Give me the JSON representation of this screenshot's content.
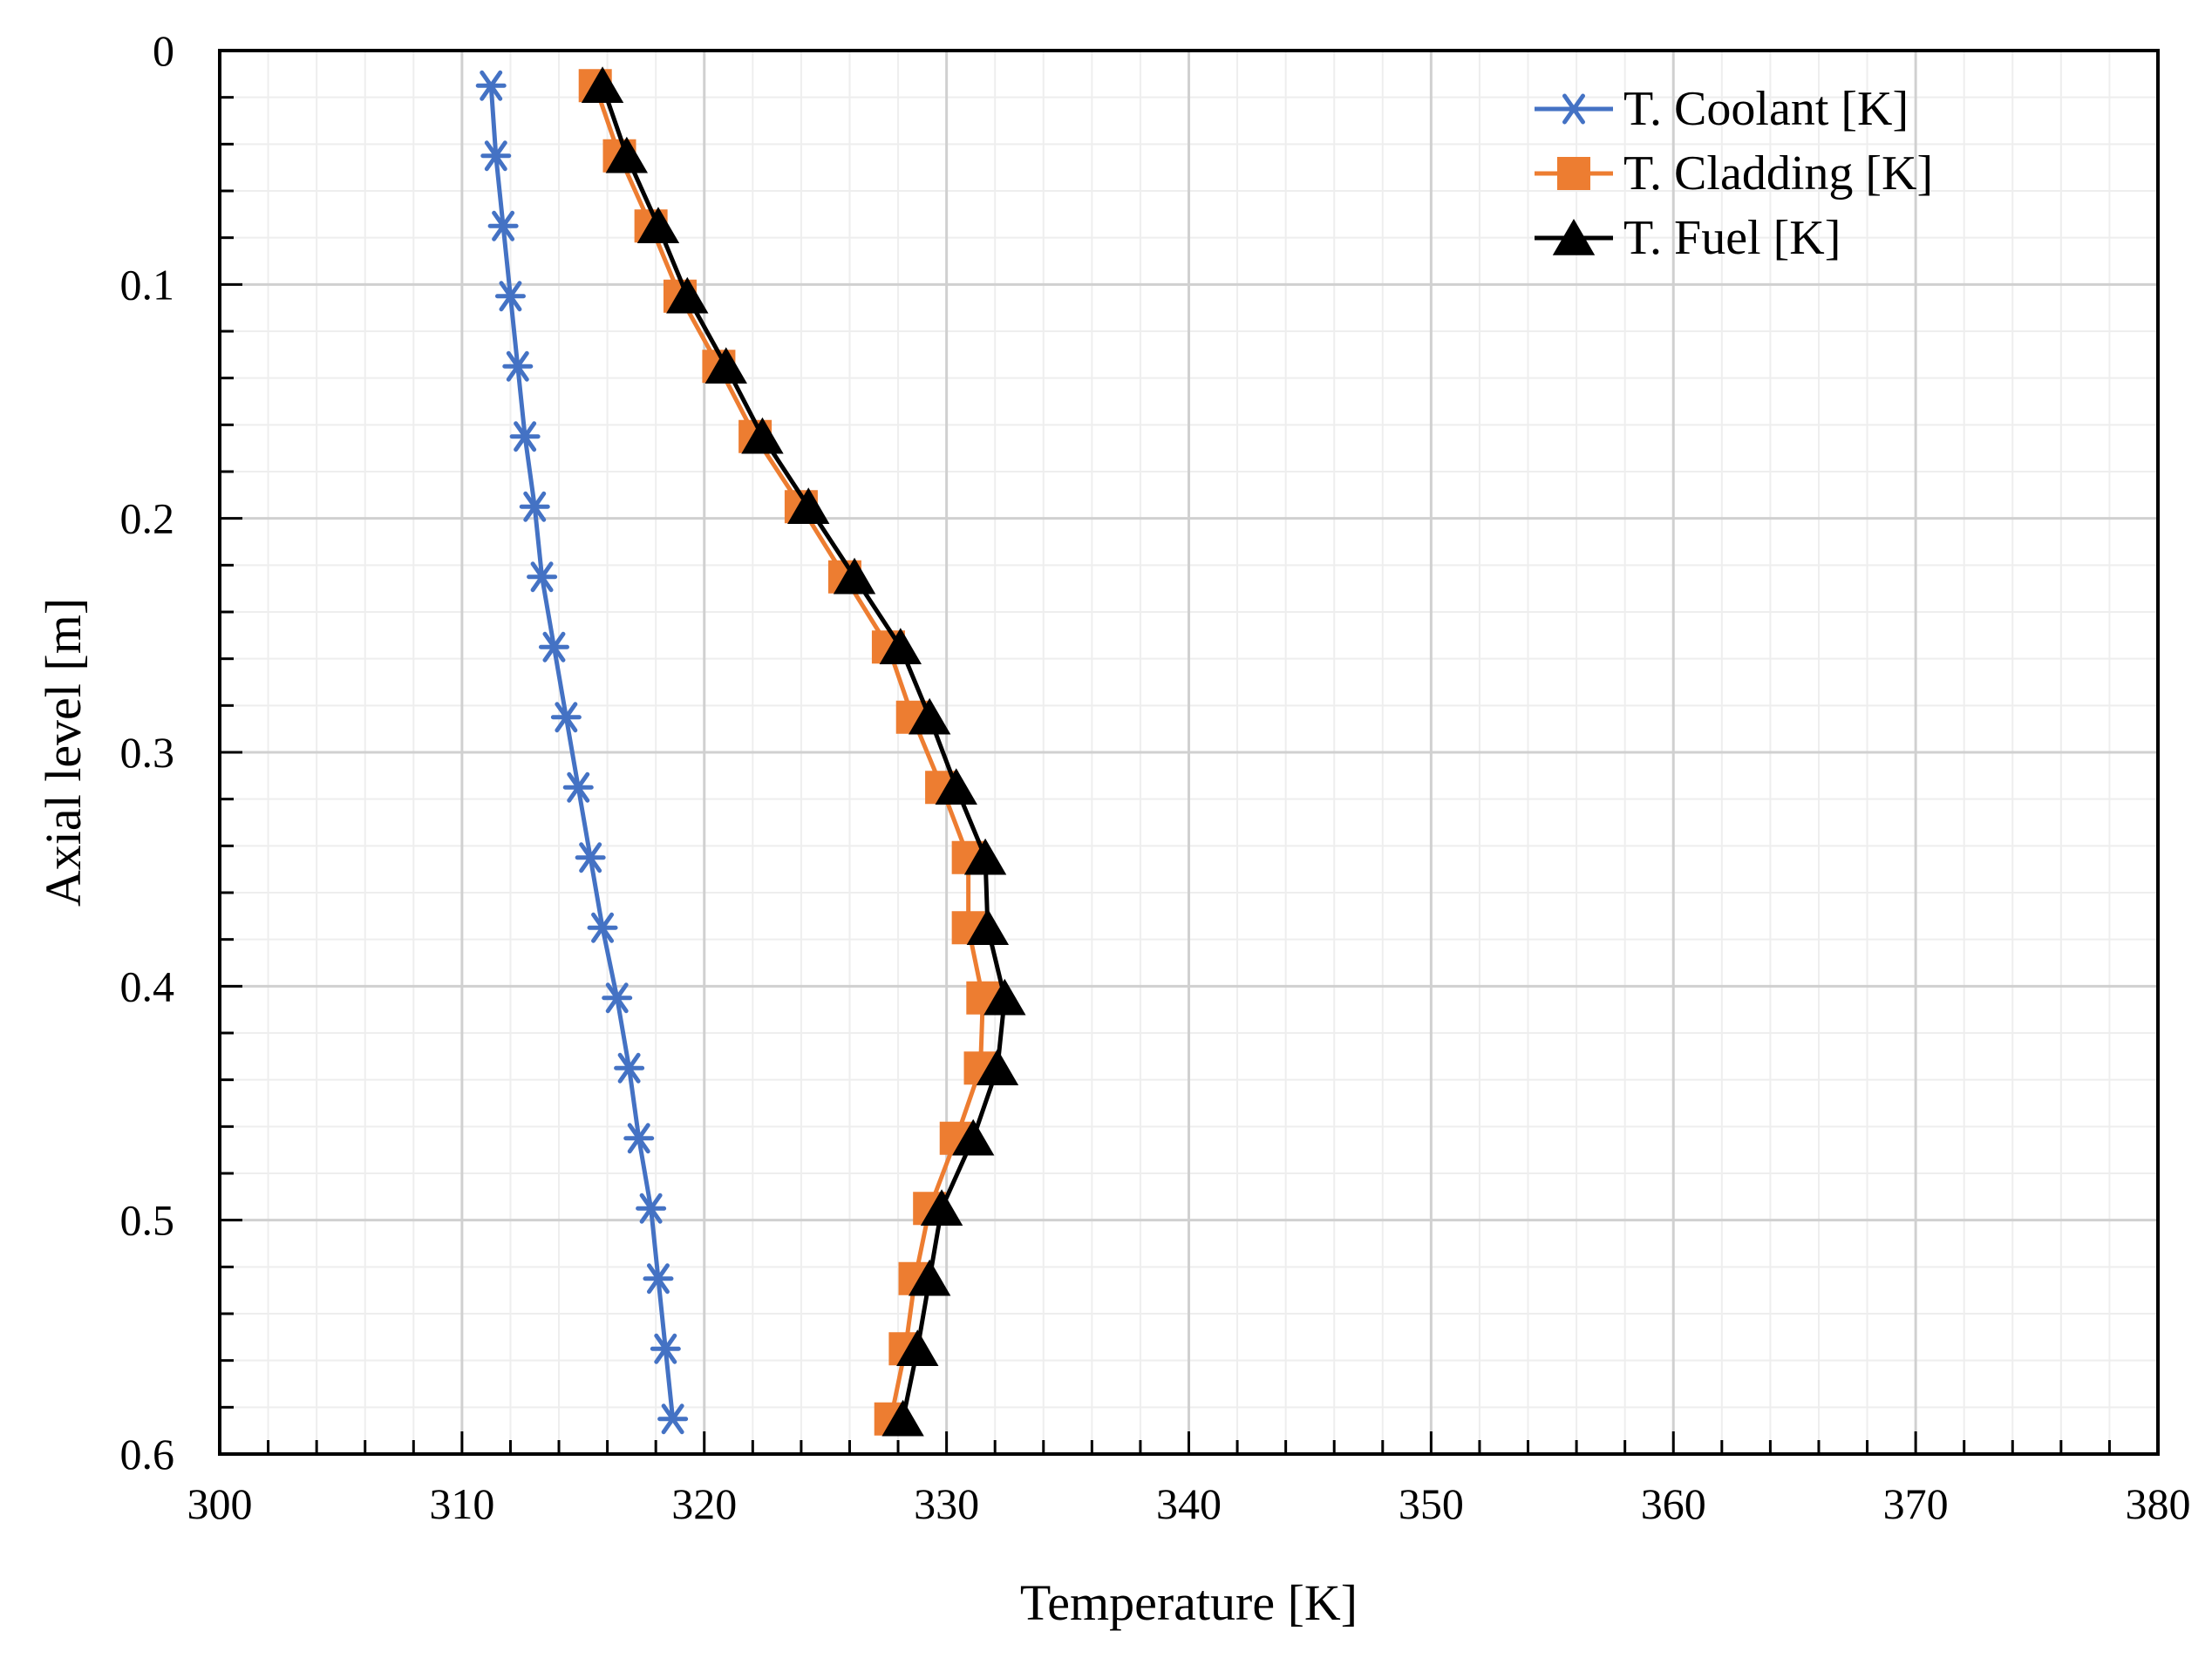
{
  "chart_data": {
    "type": "line",
    "title": "",
    "xlabel": "Temperature  [K]",
    "ylabel": "Axial level  [m]",
    "xlim": [
      300,
      380
    ],
    "ylim": [
      0,
      0.6
    ],
    "y_inverted": true,
    "x_ticks": [
      300,
      310,
      320,
      330,
      340,
      350,
      360,
      370,
      380
    ],
    "y_ticks": [
      0,
      0.1,
      0.2,
      0.3,
      0.4,
      0.5,
      0.6
    ],
    "grid": true,
    "legend_position": "top-right",
    "series": [
      {
        "name": "T. Coolant [K]",
        "color": "#4472C4",
        "marker": "star",
        "y": [
          0.015,
          0.045,
          0.075,
          0.105,
          0.135,
          0.165,
          0.195,
          0.225,
          0.255,
          0.285,
          0.315,
          0.345,
          0.375,
          0.405,
          0.435,
          0.465,
          0.495,
          0.525,
          0.555,
          0.585
        ],
        "x": [
          311.2,
          311.4,
          311.7,
          312.0,
          312.3,
          312.6,
          313.0,
          313.3,
          313.8,
          314.3,
          314.8,
          315.3,
          315.8,
          316.4,
          316.9,
          317.3,
          317.8,
          318.1,
          318.4,
          318.7
        ]
      },
      {
        "name": "T. Cladding [K]",
        "color": "#ED7D31",
        "marker": "square",
        "y": [
          0.015,
          0.045,
          0.075,
          0.105,
          0.135,
          0.165,
          0.195,
          0.225,
          0.255,
          0.285,
          0.315,
          0.345,
          0.375,
          0.405,
          0.435,
          0.465,
          0.495,
          0.525,
          0.555,
          0.585
        ],
        "x": [
          315.5,
          316.5,
          317.8,
          319.0,
          320.6,
          322.1,
          324.0,
          325.8,
          327.6,
          328.6,
          329.8,
          330.9,
          330.9,
          331.5,
          331.4,
          330.4,
          329.3,
          328.7,
          328.3,
          327.7
        ]
      },
      {
        "name": "T. Fuel [K]",
        "color": "#000000",
        "marker": "triangle",
        "y": [
          0.015,
          0.045,
          0.075,
          0.105,
          0.135,
          0.165,
          0.195,
          0.225,
          0.255,
          0.285,
          0.315,
          0.345,
          0.375,
          0.405,
          0.435,
          0.465,
          0.495,
          0.525,
          0.555,
          0.585
        ],
        "x": [
          315.8,
          316.8,
          318.1,
          319.3,
          320.9,
          322.4,
          324.3,
          326.2,
          328.1,
          329.3,
          330.4,
          331.6,
          331.7,
          332.4,
          332.1,
          331.1,
          329.8,
          329.3,
          328.8,
          328.2
        ]
      }
    ]
  }
}
